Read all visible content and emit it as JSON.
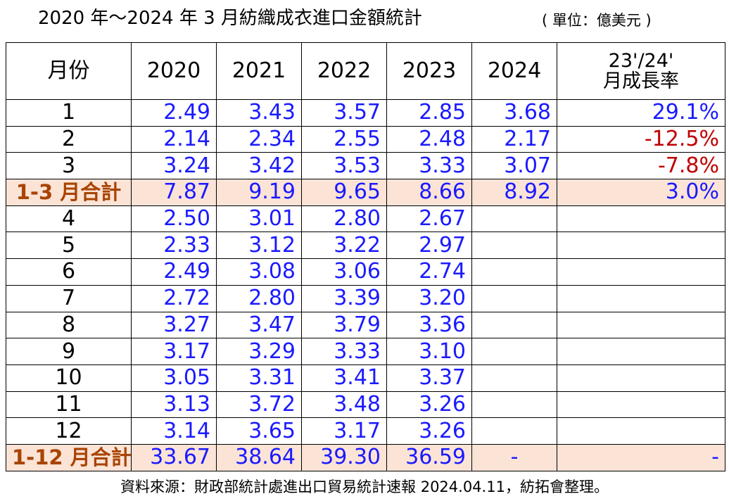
{
  "title": {
    "main": "2020 年～2024 年 3 月紡織成衣進口金額統計",
    "unit": "( 單位：億美元 )"
  },
  "table": {
    "headers": [
      "月份",
      "2020",
      "2021",
      "2022",
      "2023",
      "2024",
      "23'/24'",
      "月成長率"
    ],
    "rows": [
      {
        "month": "1",
        "v2020": "2.49",
        "v2021": "3.43",
        "v2022": "3.57",
        "v2023": "2.85",
        "v2024": "3.68",
        "growth": "29.1%"
      },
      {
        "month": "2",
        "v2020": "2.14",
        "v2021": "2.34",
        "v2022": "2.55",
        "v2023": "2.48",
        "v2024": "2.17",
        "growth": "-12.5%"
      },
      {
        "month": "3",
        "v2020": "3.24",
        "v2021": "3.42",
        "v2022": "3.53",
        "v2023": "3.33",
        "v2024": "3.07",
        "growth": "-7.8%"
      },
      {
        "month": "1-3 月合計",
        "v2020": "7.87",
        "v2021": "9.19",
        "v2022": "9.65",
        "v2023": "8.66",
        "v2024": "8.92",
        "growth": "3.0%"
      },
      {
        "month": "4",
        "v2020": "2.50",
        "v2021": "3.01",
        "v2022": "2.80",
        "v2023": "2.67",
        "v2024": "",
        "growth": ""
      },
      {
        "month": "5",
        "v2020": "2.33",
        "v2021": "3.12",
        "v2022": "3.22",
        "v2023": "2.97",
        "v2024": "",
        "growth": ""
      },
      {
        "month": "6",
        "v2020": "2.49",
        "v2021": "3.08",
        "v2022": "3.06",
        "v2023": "2.74",
        "v2024": "",
        "growth": ""
      },
      {
        "month": "7",
        "v2020": "2.72",
        "v2021": "2.80",
        "v2022": "3.39",
        "v2023": "3.20",
        "v2024": "",
        "growth": ""
      },
      {
        "month": "8",
        "v2020": "3.27",
        "v2021": "3.47",
        "v2022": "3.79",
        "v2023": "3.36",
        "v2024": "",
        "growth": ""
      },
      {
        "month": "9",
        "v2020": "3.17",
        "v2021": "3.29",
        "v2022": "3.33",
        "v2023": "3.10",
        "v2024": "",
        "growth": ""
      },
      {
        "month": "10",
        "v2020": "3.05",
        "v2021": "3.31",
        "v2022": "3.41",
        "v2023": "3.37",
        "v2024": "",
        "growth": ""
      },
      {
        "month": "11",
        "v2020": "3.13",
        "v2021": "3.72",
        "v2022": "3.48",
        "v2023": "3.26",
        "v2024": "",
        "growth": ""
      },
      {
        "month": "12",
        "v2020": "3.14",
        "v2021": "3.65",
        "v2022": "3.17",
        "v2023": "3.26",
        "v2024": "",
        "growth": ""
      },
      {
        "month": "1-12 月合計",
        "v2020": "33.67",
        "v2021": "38.64",
        "v2022": "39.30",
        "v2023": "36.59",
        "v2024": "-",
        "growth": "-"
      }
    ]
  },
  "source_note": "資料來源：財政部統計處進出口貿易統計速報 2024.04.11，紡拓會整理。",
  "colors": {
    "value_text": "#1a1aff",
    "negative_text": "#c00000",
    "subtotal_fill": "#fbe3d6",
    "subtotal_label": "#a84300"
  }
}
